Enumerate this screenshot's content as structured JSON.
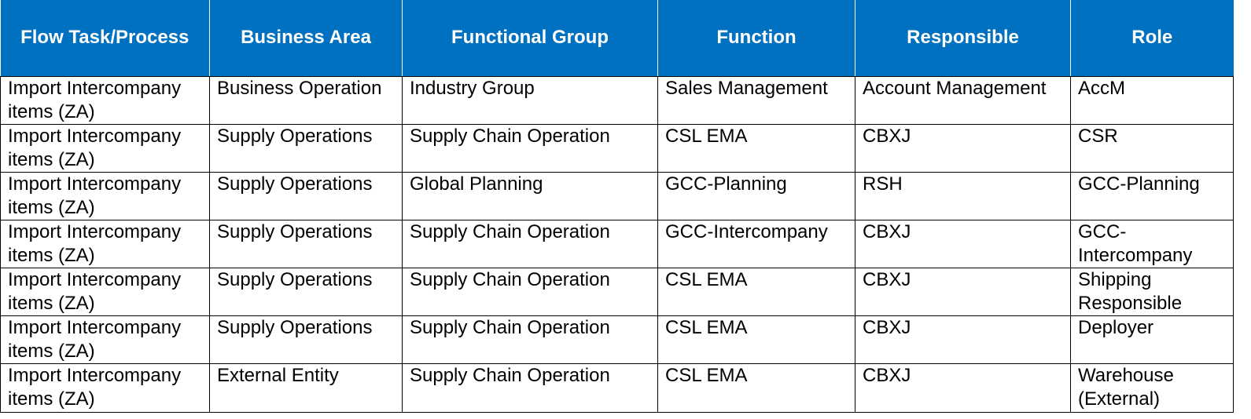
{
  "table": {
    "headers": [
      "Flow Task/Process",
      "Business Area",
      "Functional Group",
      "Function",
      "Responsible",
      "Role"
    ],
    "rows": [
      [
        "Import Intercompany items (ZA)",
        "Business Operation",
        "Industry Group",
        "Sales Management",
        "Account Management",
        "AccM"
      ],
      [
        "Import Intercompany items (ZA)",
        "Supply Operations",
        "Supply Chain Operation",
        "CSL EMA",
        "CBXJ",
        "CSR"
      ],
      [
        "Import Intercompany items (ZA)",
        "Supply Operations",
        "Global Planning",
        "GCC-Planning",
        "RSH",
        "GCC-Planning"
      ],
      [
        "Import Intercompany items (ZA)",
        "Supply Operations",
        "Supply Chain Operation",
        "GCC-Intercompany",
        "CBXJ",
        "GCC-Intercompany"
      ],
      [
        "Import Intercompany items (ZA)",
        "Supply Operations",
        "Supply Chain Operation",
        "CSL EMA",
        "CBXJ",
        "Shipping Responsible"
      ],
      [
        "Import Intercompany items (ZA)",
        "Supply Operations",
        "Supply Chain Operation",
        "CSL EMA",
        "CBXJ",
        "Deployer"
      ],
      [
        "Import Intercompany items (ZA)",
        "External Entity",
        "Supply Chain Operation",
        "CSL EMA",
        "CBXJ",
        "Warehouse (External)"
      ]
    ]
  },
  "colors": {
    "header_background": "#0070c0",
    "header_text": "#ffffff",
    "grid_lines": "#000000"
  }
}
